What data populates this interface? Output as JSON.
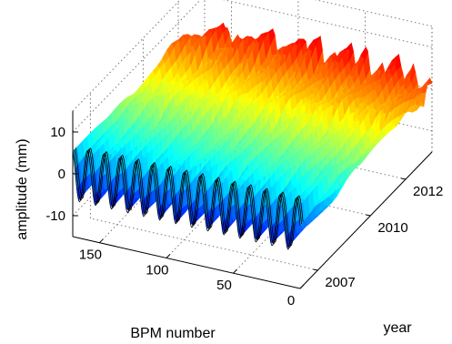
{
  "chart_data": {
    "type": "surface",
    "title": "",
    "xlabel": "BPM number",
    "ylabel": "year",
    "zlabel": "amplitude (mm)",
    "x_ticks": [
      {
        "label": "150",
        "value": 150
      },
      {
        "label": "100",
        "value": 100
      },
      {
        "label": "50",
        "value": 50
      },
      {
        "label": "0",
        "value": 0
      }
    ],
    "y_ticks": [
      {
        "label": "2007",
        "value": 2007
      },
      {
        "label": "2010",
        "value": 2010
      },
      {
        "label": "2012",
        "value": 2012
      }
    ],
    "z_ticks": [
      {
        "label": "10",
        "value": 10
      },
      {
        "label": "0",
        "value": 0
      },
      {
        "label": "-10",
        "value": -10
      }
    ],
    "xlim": [
      0,
      170
    ],
    "ylim": [
      2006,
      2013.5
    ],
    "zlim": [
      -15,
      15
    ],
    "grid": true,
    "colormap": "jet",
    "oscillation_period_bpm": 12,
    "front_profile_amplitude_mm": 6
  }
}
